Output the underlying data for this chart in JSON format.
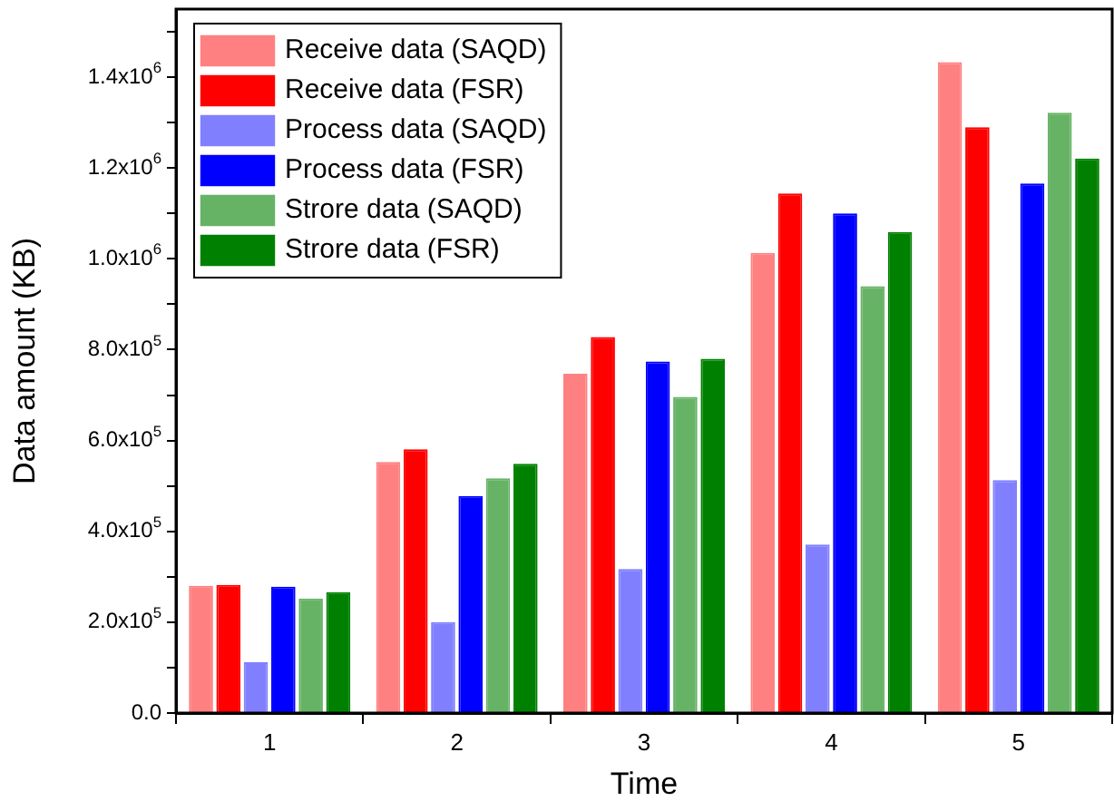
{
  "chart_data": {
    "type": "bar",
    "xlabel": "Time",
    "ylabel": "Data amount (KB)",
    "categories": [
      "1",
      "2",
      "3",
      "4",
      "5"
    ],
    "series": [
      {
        "name": "Receive data (SAQD)",
        "color": "#ff8080",
        "values": [
          280000,
          553000,
          747000,
          1013000,
          1433000
        ]
      },
      {
        "name": "Receive data (FSR)",
        "color": "#ff0000",
        "values": [
          282000,
          581000,
          828000,
          1144000,
          1290000
        ]
      },
      {
        "name": "Process data (SAQD)",
        "color": "#8080ff",
        "values": [
          112000,
          200000,
          317000,
          371000,
          513000
        ]
      },
      {
        "name": "Process data (FSR)",
        "color": "#0000ff",
        "values": [
          278000,
          478000,
          774000,
          1100000,
          1166000
        ]
      },
      {
        "name": "Strore data (SAQD)",
        "color": "#66b366",
        "values": [
          252000,
          517000,
          696000,
          940000,
          1322000
        ]
      },
      {
        "name": "Strore data (FSR)",
        "color": "#008000",
        "values": [
          266000,
          549000,
          780000,
          1059000,
          1221000
        ]
      }
    ],
    "ylim": [
      0,
      1550000
    ],
    "yticks": [
      {
        "value": 0,
        "label": "0.0"
      },
      {
        "value": 100000,
        "label": null
      },
      {
        "value": 200000,
        "label": "2.0x10$^{5}$"
      },
      {
        "value": 300000,
        "label": null
      },
      {
        "value": 400000,
        "label": "4.0x10$^{5}$"
      },
      {
        "value": 500000,
        "label": null
      },
      {
        "value": 600000,
        "label": "6.0x10$^{5}$"
      },
      {
        "value": 700000,
        "label": null
      },
      {
        "value": 800000,
        "label": "8.0x10$^{5}$"
      },
      {
        "value": 900000,
        "label": null
      },
      {
        "value": 1000000,
        "label": "1.0x10$^{6}$"
      },
      {
        "value": 1100000,
        "label": null
      },
      {
        "value": 1200000,
        "label": "1.2x10$^{6}$"
      },
      {
        "value": 1300000,
        "label": null
      },
      {
        "value": 1400000,
        "label": "1.4x10$^{6}$"
      },
      {
        "value": 1500000,
        "label": null
      }
    ],
    "legend": "top left"
  }
}
